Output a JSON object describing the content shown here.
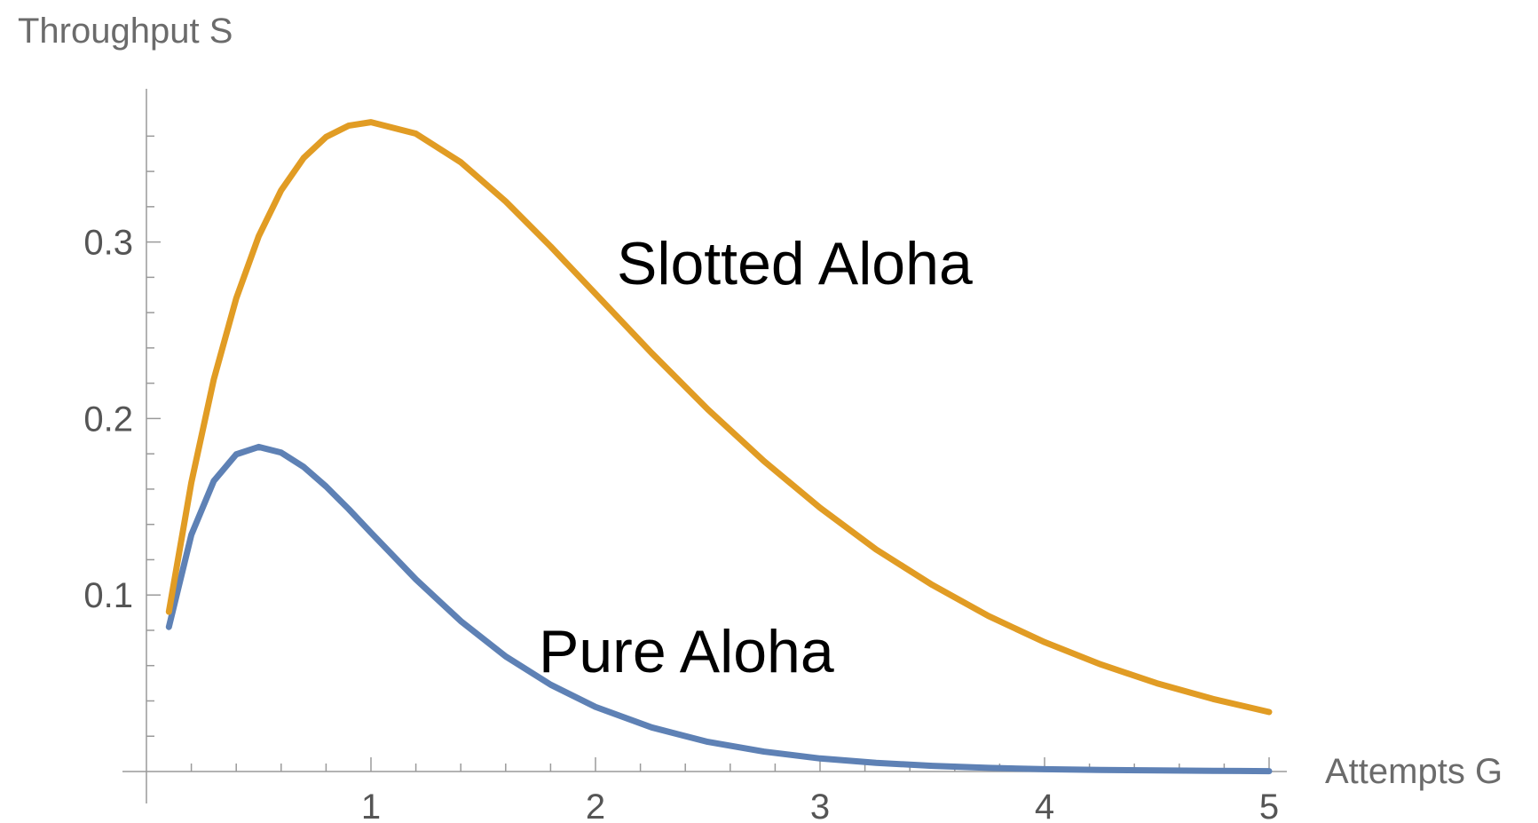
{
  "chart_data": {
    "type": "line",
    "ylabel": "Throughput S",
    "xlabel": "Attempts G",
    "xlim": [
      0,
      5
    ],
    "ylim": [
      0,
      0.37
    ],
    "x_ticks": [
      1,
      2,
      3,
      4,
      5
    ],
    "y_ticks": [
      0.1,
      0.2,
      0.3
    ],
    "x_tick_labels": [
      "1",
      "2",
      "3",
      "4",
      "5"
    ],
    "y_tick_labels": [
      "0.1",
      "0.2",
      "0.3"
    ],
    "grid": false,
    "series": [
      {
        "name": "Pure Aloha",
        "color": "#5e81b5",
        "x": [
          0,
          0.1,
          0.2,
          0.3,
          0.4,
          0.5,
          0.6,
          0.7,
          0.8,
          0.9,
          1.0,
          1.2,
          1.4,
          1.6,
          1.8,
          2.0,
          2.25,
          2.5,
          2.75,
          3.0,
          3.25,
          3.5,
          3.75,
          4.0,
          4.25,
          4.5,
          4.75,
          5.0
        ],
        "y": [
          0,
          0.0819,
          0.1341,
          0.1646,
          0.1797,
          0.1839,
          0.1807,
          0.1726,
          0.1615,
          0.1488,
          0.1353,
          0.1089,
          0.0852,
          0.0652,
          0.0492,
          0.0366,
          0.025,
          0.0168,
          0.0113,
          0.0074,
          0.0049,
          0.0032,
          0.0021,
          0.0013,
          0.0009,
          0.0006,
          0.0004,
          0.0002
        ]
      },
      {
        "name": "Slotted Aloha",
        "color": "#e19c24",
        "x": [
          0,
          0.1,
          0.2,
          0.3,
          0.4,
          0.5,
          0.6,
          0.7,
          0.8,
          0.9,
          1.0,
          1.2,
          1.4,
          1.6,
          1.8,
          2.0,
          2.25,
          2.5,
          2.75,
          3.0,
          3.25,
          3.5,
          3.75,
          4.0,
          4.25,
          4.5,
          4.75,
          5.0
        ],
        "y": [
          0,
          0.0905,
          0.1637,
          0.2222,
          0.2681,
          0.3033,
          0.3293,
          0.3476,
          0.3595,
          0.3659,
          0.3679,
          0.3614,
          0.3452,
          0.323,
          0.2975,
          0.2707,
          0.2371,
          0.2052,
          0.1759,
          0.1494,
          0.1258,
          0.1057,
          0.0881,
          0.0733,
          0.0607,
          0.05,
          0.0411,
          0.0337
        ]
      }
    ],
    "annotations": [
      {
        "text": "Slotted Aloha",
        "series": "Slotted Aloha"
      },
      {
        "text": "Pure Aloha",
        "series": "Pure Aloha"
      }
    ]
  }
}
